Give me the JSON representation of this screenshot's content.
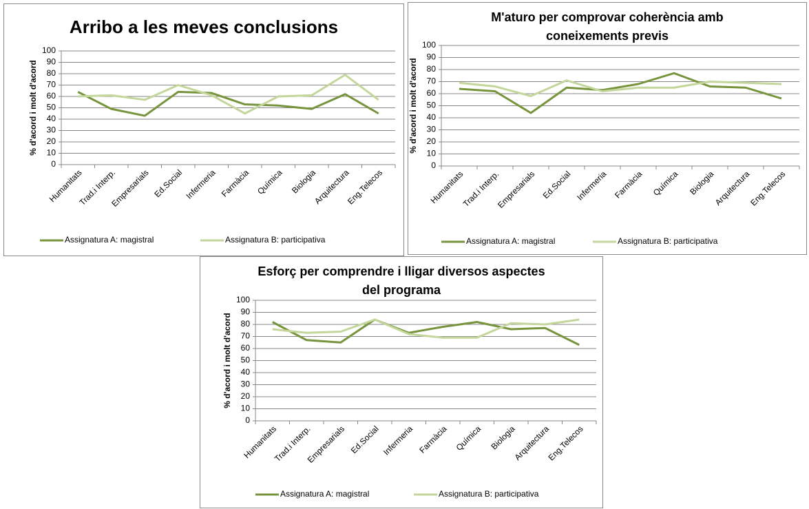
{
  "chart_data": [
    {
      "type": "line",
      "title": "Arribo a les meves conclusions",
      "y_label": "% d'acord i molt d'acord",
      "categories": [
        "Humanitats",
        "Trad.i Interp.",
        "Empresarials",
        "Ed.Social",
        "Infermeria",
        "Farmàcia",
        "Química",
        "Biologia",
        "Arquitectura",
        "Eng.Telecos"
      ],
      "series": [
        {
          "name": "Assignatura A: magistral",
          "color": "#77933c",
          "values": [
            64,
            49,
            43,
            64,
            63,
            53,
            52,
            49,
            62,
            45
          ]
        },
        {
          "name": "Assignatura B: participativa",
          "color": "#c3d69b",
          "values": [
            60,
            61,
            57,
            70,
            61,
            45,
            60,
            61,
            79,
            57
          ]
        }
      ],
      "ylim": [
        0,
        100
      ],
      "yticks": [
        0,
        10,
        20,
        30,
        40,
        50,
        60,
        70,
        80,
        90,
        100
      ],
      "grid": true,
      "legend": "bottom"
    },
    {
      "type": "line",
      "title": "M'aturo per comprovar coherència amb coneixements previs",
      "y_label": "% d'acord i molt d'acord",
      "categories": [
        "Humanitats",
        "Trad.i Interp.",
        "Empresarials",
        "Ed.Social",
        "Infermeria",
        "Farmàcia",
        "Química",
        "Biologia",
        "Arquitectura",
        "Eng.Telecos"
      ],
      "series": [
        {
          "name": "Assignatura A: magistral",
          "color": "#77933c",
          "values": [
            64,
            62,
            44,
            65,
            63,
            68,
            77,
            66,
            65,
            56
          ]
        },
        {
          "name": "Assignatura B: participativa",
          "color": "#c3d69b",
          "values": [
            69,
            66,
            58,
            71,
            62,
            65,
            65,
            70,
            69,
            68
          ]
        }
      ],
      "ylim": [
        0,
        100
      ],
      "yticks": [
        0,
        10,
        20,
        30,
        40,
        50,
        60,
        70,
        80,
        90,
        100
      ],
      "grid": true,
      "legend": "bottom"
    },
    {
      "type": "line",
      "title": "Esforç per comprendre i lligar diversos aspectes del programa",
      "y_label": "% d'acord i molt d'acord",
      "categories": [
        "Humanitats",
        "Trad.i Interp.",
        "Empresarials",
        "Ed.Social",
        "Infermeria",
        "Farmàcia",
        "Química",
        "Biologia",
        "Arquitectura",
        "Eng.Telecos"
      ],
      "series": [
        {
          "name": "Assignatura A: magistral",
          "color": "#77933c",
          "values": [
            82,
            67,
            65,
            84,
            73,
            78,
            82,
            76,
            77,
            63
          ]
        },
        {
          "name": "Assignatura B: participativa",
          "color": "#c3d69b",
          "values": [
            76,
            73,
            74,
            84,
            72,
            69,
            69,
            81,
            80,
            84
          ]
        }
      ],
      "ylim": [
        0,
        100
      ],
      "yticks": [
        0,
        10,
        20,
        30,
        40,
        50,
        60,
        70,
        80,
        90,
        100
      ],
      "grid": true,
      "legend": "bottom"
    }
  ]
}
